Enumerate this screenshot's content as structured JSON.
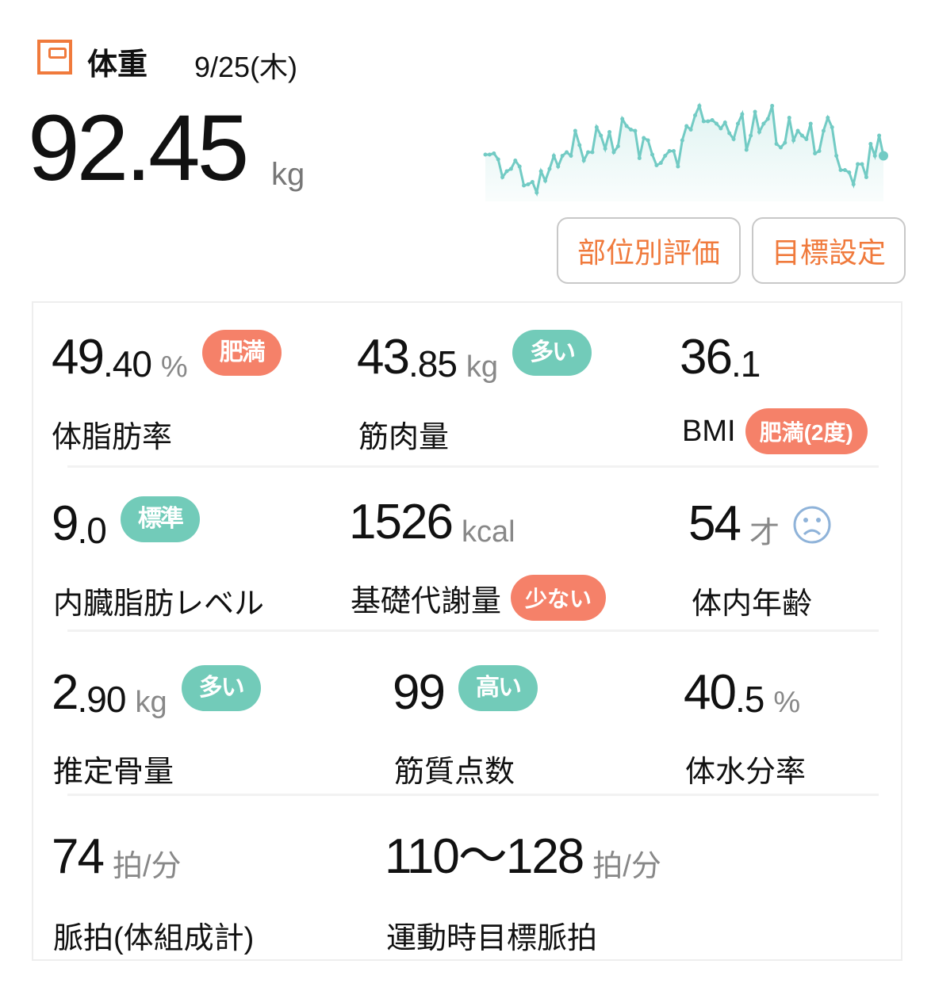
{
  "header": {
    "title": "体重",
    "date": "9/25(木)",
    "icon": "scale-icon",
    "weight": "92.45",
    "weight_unit": "kg"
  },
  "buttons": {
    "part_eval": "部位別評価",
    "goal": "目標設定"
  },
  "colors": {
    "accent": "#f07a3c",
    "badge_bad": "#f58169",
    "badge_good": "#72cbb9",
    "sparkline": "#72cbc4",
    "face": "#8fb3d9"
  },
  "sparkline": {
    "values": [
      170,
      170,
      175,
      150,
      75,
      100,
      110,
      145,
      120,
      40,
      45,
      55,
      10,
      100,
      60,
      110,
      165,
      120,
      165,
      180,
      165,
      270,
      210,
      145,
      180,
      180,
      285,
      250,
      195,
      265,
      180,
      205,
      320,
      290,
      275,
      270,
      155,
      240,
      230,
      170,
      125,
      135,
      165,
      185,
      185,
      120,
      230,
      290,
      275,
      335,
      375,
      310,
      310,
      315,
      300,
      280,
      305,
      260,
      235,
      300,
      340,
      190,
      250,
      350,
      265,
      300,
      320,
      375,
      215,
      200,
      220,
      325,
      230,
      270,
      250,
      235,
      300,
      175,
      185,
      270,
      325,
      285,
      165,
      105,
      105,
      95,
      45,
      130,
      130,
      75,
      215,
      165,
      250,
      165
    ]
  },
  "metrics": [
    {
      "int": "49",
      "dec": ".40",
      "unit": "%",
      "badge": "肥満",
      "badge_type": "bad",
      "label": "体脂肪率"
    },
    {
      "int": "43",
      "dec": ".85",
      "unit": "kg",
      "badge": "多い",
      "badge_type": "good",
      "label": "筋肉量"
    },
    {
      "int": "36",
      "dec": ".1",
      "unit": "",
      "label": "BMI",
      "label_badge": "肥満(2度)",
      "badge_type": "bad"
    },
    {
      "int": "9",
      "dec": ".0",
      "unit": "",
      "badge": "標準",
      "badge_type": "good",
      "label": "内臓脂肪レベル"
    },
    {
      "int": "1526",
      "dec": "",
      "unit": "kcal",
      "label": "基礎代謝量",
      "label_badge": "少ない",
      "badge_type": "bad"
    },
    {
      "int": "54",
      "dec": "",
      "unit": "才",
      "icon": "sad-face-icon",
      "label": "体内年齢"
    },
    {
      "int": "2",
      "dec": ".90",
      "unit": "kg",
      "badge": "多い",
      "badge_type": "good",
      "label": "推定骨量"
    },
    {
      "int": "99",
      "dec": "",
      "unit": "",
      "badge": "高い",
      "badge_type": "good",
      "label": "筋質点数"
    },
    {
      "int": "40",
      "dec": ".5",
      "unit": "%",
      "label": "体水分率"
    },
    {
      "int": "74",
      "dec": "",
      "unit": "拍/分",
      "label": "脈拍(体組成計)"
    },
    {
      "int": "110〜128",
      "dec": "",
      "unit": "拍/分",
      "label": "運動時目標脈拍"
    }
  ]
}
